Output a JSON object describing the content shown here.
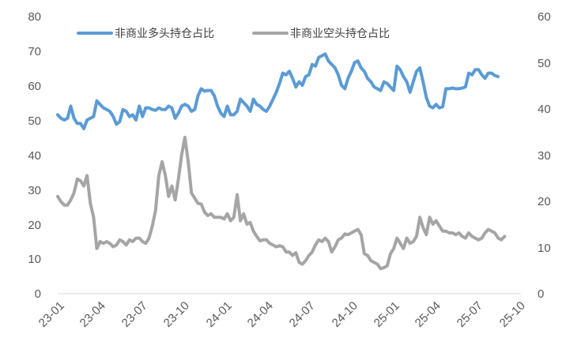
{
  "chart_data": {
    "type": "line",
    "title": "",
    "legend": {
      "placement": "top-left",
      "items": [
        {
          "label": "非商业多头持仓占比",
          "color": "#5B9BD5"
        },
        {
          "label": "非商业空头持仓占比",
          "color": "#A5A5A5"
        }
      ]
    },
    "x_tick_labels": [
      "23-01",
      "23-04",
      "23-07",
      "23-10",
      "24-01",
      "24-04",
      "24-07",
      "24-10",
      "25-01",
      "25-04",
      "25-07",
      "25-10"
    ],
    "y_left": {
      "ticks": [
        "0",
        "10",
        "20",
        "30",
        "40",
        "50",
        "60",
        "70",
        "80"
      ],
      "range": [
        0,
        80
      ]
    },
    "y_right": {
      "ticks": [
        "0",
        "10",
        "20",
        "30",
        "40",
        "50",
        "60"
      ],
      "range": [
        0,
        60
      ]
    },
    "grid": false,
    "x_range": [
      0,
      142
    ],
    "series": [
      {
        "name": "非商业多头持仓占比",
        "axis": "left",
        "color": "#5B9BD5",
        "values": [
          51.5,
          50.5,
          50,
          50.5,
          54,
          50.5,
          49,
          49,
          47.5,
          50,
          50.5,
          51,
          55.5,
          54.5,
          53.5,
          53,
          52.5,
          51,
          48.8,
          49.5,
          53,
          52.5,
          51,
          51.5,
          50,
          54,
          51,
          53.5,
          53.5,
          53,
          52.8,
          53.5,
          53,
          53,
          54,
          53.5,
          50.5,
          52,
          54,
          54.5,
          54,
          52.5,
          53,
          57,
          59,
          58.3,
          58.5,
          58.5,
          57,
          54,
          52,
          51,
          54,
          51.5,
          51.5,
          52.5,
          56,
          55,
          54,
          52.5,
          56,
          54.5,
          54,
          53,
          52.5,
          54,
          56,
          58,
          60.5,
          63.5,
          63,
          64,
          62,
          59.5,
          61,
          60,
          62.5,
          63,
          66,
          65.5,
          68,
          68.5,
          69,
          67,
          66,
          65,
          63,
          60,
          59,
          62,
          64,
          66.5,
          67,
          65,
          64,
          62,
          61,
          59.5,
          59,
          58.5,
          61,
          60.5,
          59.5,
          58.5,
          65.5,
          64.5,
          62.5,
          61,
          58,
          61,
          64,
          65,
          61,
          56.5,
          54,
          53.5,
          54.5,
          53.5,
          53.8,
          59,
          59,
          59.2,
          59,
          59,
          59.2,
          59.5,
          63.5,
          63,
          64.5,
          64.5,
          63,
          62,
          63.5,
          63.5,
          62.8,
          62.5
        ]
      },
      {
        "name": "非商业空头持仓占比",
        "axis": "left",
        "color": "#A5A5A5",
        "values": [
          28,
          26.5,
          25.5,
          25.5,
          27,
          29,
          33,
          32.5,
          31,
          34,
          26,
          22,
          13,
          15,
          14.5,
          15,
          14.5,
          13.5,
          14,
          15.5,
          15,
          14,
          15.5,
          15,
          16,
          16,
          15,
          14.5,
          16,
          19.5,
          24,
          34,
          38,
          34,
          28,
          31,
          27,
          33,
          40,
          45,
          38,
          29,
          27.5,
          26,
          25.8,
          23.5,
          22.5,
          23,
          22,
          22,
          22,
          21.5,
          23,
          21,
          22,
          28.5,
          21,
          23,
          20,
          20.5,
          18,
          16.5,
          15.2,
          15.5,
          15.5,
          14.5,
          14,
          13.5,
          13.8,
          13.5,
          12,
          12,
          11,
          11.8,
          9,
          8.5,
          9.5,
          11,
          12,
          14,
          15.5,
          15,
          16,
          15,
          12,
          13.5,
          15.5,
          16,
          17.2,
          17,
          17.5,
          18,
          18.5,
          17,
          11.5,
          11,
          9.5,
          9,
          8.5,
          7.2,
          7.5,
          8,
          11.5,
          13,
          16,
          14.5,
          13,
          16,
          14.5,
          15,
          16.5,
          22,
          19,
          17,
          22,
          20,
          21,
          19.5,
          18,
          18,
          17.5,
          17.5,
          17,
          17.5,
          16.5,
          16,
          17.5,
          16.5,
          16,
          15.5,
          16,
          17.5,
          18.5,
          18,
          17.5,
          16,
          15.5,
          16.5
        ]
      }
    ]
  }
}
